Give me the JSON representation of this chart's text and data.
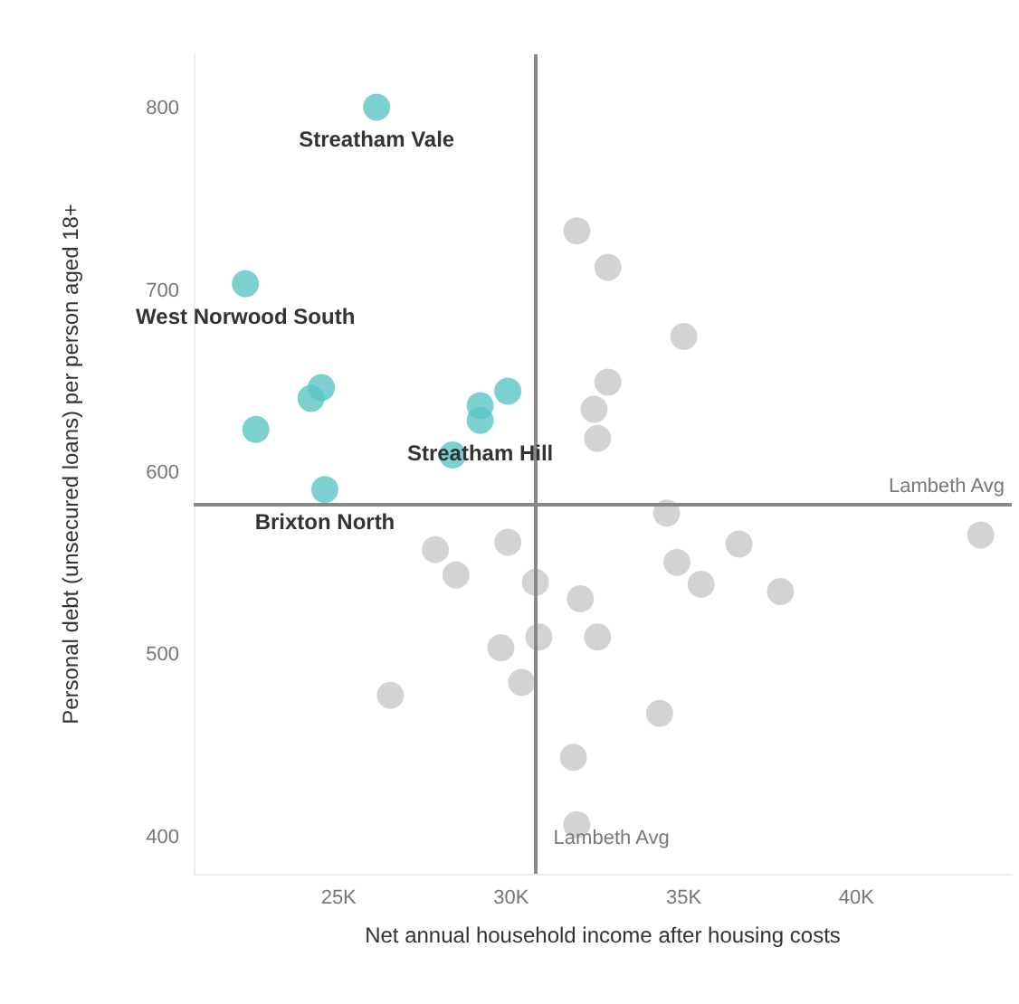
{
  "chart_data": {
    "type": "scatter",
    "xlabel": "Net annual household income after housing costs",
    "ylabel": "Personal debt (unsecured loans) per person aged 18+",
    "xlim": [
      20800,
      44500
    ],
    "xticks": [
      {
        "value": 25000,
        "label": "25K"
      },
      {
        "value": 30000,
        "label": "30K"
      },
      {
        "value": 35000,
        "label": "35K"
      },
      {
        "value": 40000,
        "label": "40K"
      }
    ],
    "ylim": [
      380,
      830
    ],
    "yticks": [
      400,
      500,
      600,
      700,
      800
    ],
    "grid": false,
    "marker": "circle",
    "series": [
      {
        "color": "#c8c8c8",
        "x": [
          31900,
          32800,
          35000,
          32800,
          32400,
          32500,
          34500,
          36600,
          43600,
          27800,
          29900,
          28400,
          30700,
          34800,
          35500,
          37800,
          32000,
          29700,
          30800,
          32500,
          30300,
          26500,
          34300,
          31800,
          31900
        ],
        "values": [
          733,
          713,
          675,
          650,
          635,
          619,
          578,
          561,
          566,
          558,
          562,
          544,
          540,
          551,
          539,
          535,
          531,
          504,
          510,
          510,
          485,
          478,
          468,
          444,
          407
        ]
      },
      {
        "color": "#5bc4c4",
        "x": [
          26100,
          22300,
          24500,
          24200,
          22600,
          29900,
          29100,
          29100,
          28300,
          24600
        ],
        "values": [
          801,
          704,
          647,
          641,
          624,
          645,
          637,
          629,
          610,
          591
        ]
      }
    ],
    "ref_lines": [
      {
        "axis": "x",
        "value": 30700,
        "label": "Lambeth Avg",
        "color": "#888888"
      },
      {
        "axis": "y",
        "value": 583,
        "label": "Lambeth Avg",
        "color": "#888888"
      }
    ],
    "annotations": [
      {
        "text": "Streatham Vale",
        "x": 26100,
        "y": 801
      },
      {
        "text": "West Norwood South",
        "x": 22300,
        "y": 704
      },
      {
        "text": "Streatham Hill",
        "x": 29100,
        "y": 629
      },
      {
        "text": "Brixton North",
        "x": 24600,
        "y": 591
      }
    ]
  }
}
